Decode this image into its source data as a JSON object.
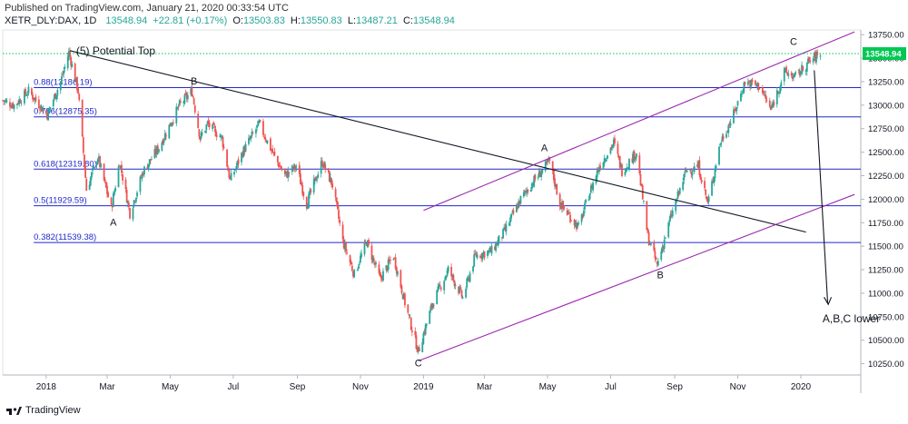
{
  "header": {
    "published": "Published on TradingView.com, January 21, 2020 00:33:54 UTC",
    "symbol": "XETR_DLY:DAX, 1D",
    "last": "13548.94",
    "change": "+22.81 (+0.17%)",
    "o_label": "O:",
    "o": "13503.83",
    "h_label": "H:",
    "h": "13550.83",
    "l_label": "L:",
    "l": "13487.21",
    "c_label": "C:",
    "c": "13548.94"
  },
  "footer": {
    "brand": "TradingView",
    "logo_icon": "tradingview-logo-icon"
  },
  "colors": {
    "up": "#26a69a",
    "down": "#ef5350",
    "fib": "#2029c8",
    "channel": "#9c27b0",
    "trend": "#131722",
    "price_line": "#00c853"
  },
  "chart_data": {
    "type": "candlestick",
    "price_label": "13548.94",
    "y_ticks": [
      10250,
      10500,
      10750,
      11000,
      11250,
      11500,
      11750,
      12000,
      12250,
      12500,
      12750,
      13000,
      13250,
      13500,
      13750
    ],
    "y_tick_labels": [
      "10250.00",
      "10500.00",
      "10750.00",
      "11000.00",
      "11250.00",
      "11500.00",
      "11750.00",
      "12000.00",
      "12250.00",
      "12500.00",
      "12750.00",
      "13000.00",
      "13250.00",
      "13500.00",
      "13750.00"
    ],
    "ylim": [
      10130,
      13800
    ],
    "x_ticks": [
      {
        "label": "2018",
        "date": "2018-01-01"
      },
      {
        "label": "Mar",
        "date": "2018-03-01"
      },
      {
        "label": "May",
        "date": "2018-05-01"
      },
      {
        "label": "Jul",
        "date": "2018-07-01"
      },
      {
        "label": "Sep",
        "date": "2018-09-01"
      },
      {
        "label": "Nov",
        "date": "2018-11-01"
      },
      {
        "label": "2019",
        "date": "2019-01-01"
      },
      {
        "label": "Mar",
        "date": "2019-03-01"
      },
      {
        "label": "May",
        "date": "2019-05-01"
      },
      {
        "label": "Jul",
        "date": "2019-07-01"
      },
      {
        "label": "Sep",
        "date": "2019-09-01"
      },
      {
        "label": "Nov",
        "date": "2019-11-01"
      },
      {
        "label": "2020",
        "date": "2020-01-01"
      }
    ],
    "xlim": [
      "2017-11-20",
      "2020-02-28"
    ],
    "close_path": [
      [
        "2017-11-20",
        13050
      ],
      [
        "2017-12-01",
        13000
      ],
      [
        "2017-12-15",
        13150
      ],
      [
        "2018-01-02",
        12900
      ],
      [
        "2018-01-15",
        13250
      ],
      [
        "2018-01-23",
        13560
      ],
      [
        "2018-02-01",
        13150
      ],
      [
        "2018-02-09",
        12100
      ],
      [
        "2018-02-20",
        12450
      ],
      [
        "2018-03-05",
        11900
      ],
      [
        "2018-03-13",
        12400
      ],
      [
        "2018-03-23",
        11850
      ],
      [
        "2018-04-05",
        12300
      ],
      [
        "2018-04-20",
        12550
      ],
      [
        "2018-05-10",
        13000
      ],
      [
        "2018-05-22",
        13150
      ],
      [
        "2018-05-30",
        12650
      ],
      [
        "2018-06-06",
        12800
      ],
      [
        "2018-06-20",
        12650
      ],
      [
        "2018-06-28",
        12200
      ],
      [
        "2018-07-10",
        12500
      ],
      [
        "2018-07-26",
        12800
      ],
      [
        "2018-08-10",
        12450
      ],
      [
        "2018-08-20",
        12250
      ],
      [
        "2018-08-31",
        12350
      ],
      [
        "2018-09-10",
        11950
      ],
      [
        "2018-09-25",
        12400
      ],
      [
        "2018-10-05",
        12150
      ],
      [
        "2018-10-15",
        11550
      ],
      [
        "2018-10-26",
        11200
      ],
      [
        "2018-11-07",
        11550
      ],
      [
        "2018-11-20",
        11150
      ],
      [
        "2018-12-03",
        11400
      ],
      [
        "2018-12-14",
        10900
      ],
      [
        "2018-12-27",
        10380
      ],
      [
        "2019-01-10",
        10900
      ],
      [
        "2019-01-25",
        11250
      ],
      [
        "2019-02-08",
        10950
      ],
      [
        "2019-02-20",
        11400
      ],
      [
        "2019-03-08",
        11450
      ],
      [
        "2019-03-20",
        11650
      ],
      [
        "2019-04-05",
        12000
      ],
      [
        "2019-04-18",
        12200
      ],
      [
        "2019-05-03",
        12400
      ],
      [
        "2019-05-13",
        11950
      ],
      [
        "2019-05-31",
        11700
      ],
      [
        "2019-06-10",
        12050
      ],
      [
        "2019-06-20",
        12350
      ],
      [
        "2019-07-04",
        12600
      ],
      [
        "2019-07-12",
        12300
      ],
      [
        "2019-07-26",
        12500
      ],
      [
        "2019-08-06",
        11600
      ],
      [
        "2019-08-15",
        11300
      ],
      [
        "2019-08-28",
        11800
      ],
      [
        "2019-09-12",
        12300
      ],
      [
        "2019-09-24",
        12350
      ],
      [
        "2019-10-03",
        11950
      ],
      [
        "2019-10-15",
        12600
      ],
      [
        "2019-10-28",
        12900
      ],
      [
        "2019-11-08",
        13250
      ],
      [
        "2019-11-22",
        13200
      ],
      [
        "2019-12-03",
        12950
      ],
      [
        "2019-12-16",
        13350
      ],
      [
        "2019-12-27",
        13300
      ],
      [
        "2020-01-08",
        13450
      ],
      [
        "2020-01-17",
        13530
      ],
      [
        "2020-01-20",
        13548.94
      ]
    ],
    "fib_levels": [
      {
        "label": "0.88(13186.19)",
        "value": 13186.19
      },
      {
        "label": "0.786(12875.35)",
        "value": 12875.35
      },
      {
        "label": "0.618(12319.80)",
        "value": 12319.8
      },
      {
        "label": "0.5(11929.59)",
        "value": 11929.59
      },
      {
        "label": "0.382(11539.38)",
        "value": 11539.38
      }
    ],
    "annotations": [
      {
        "text": "(5) Potential Top",
        "date": "2018-01-30",
        "price": 13540
      },
      {
        "text": "B",
        "date": "2018-05-24",
        "price": 13220
      },
      {
        "text": "A",
        "date": "2018-03-07",
        "price": 11720
      },
      {
        "text": "C",
        "date": "2018-12-27",
        "price": 10220
      },
      {
        "text": "A",
        "date": "2019-04-28",
        "price": 12510
      },
      {
        "text": "B",
        "date": "2019-08-18",
        "price": 11160
      },
      {
        "text": "C",
        "date": "2019-12-25",
        "price": 13640
      },
      {
        "text": "A,B,C lower",
        "date": "2020-01-22",
        "price": 10690
      }
    ],
    "trend_lines": [
      {
        "name": "resistance",
        "color": "trend",
        "from": [
          "2018-01-24",
          13580
        ],
        "to": [
          "2020-01-06",
          11650
        ]
      },
      {
        "name": "channel-upper",
        "color": "channel",
        "from": [
          "2019-01-01",
          11880
        ],
        "to": [
          "2020-02-22",
          13780
        ]
      },
      {
        "name": "channel-lower",
        "color": "channel",
        "from": [
          "2018-12-27",
          10280
        ],
        "to": [
          "2020-02-22",
          12050
        ]
      },
      {
        "name": "projection-arrow",
        "color": "trend",
        "from": [
          "2020-01-14",
          13370
        ],
        "to": [
          "2020-01-27",
          10890
        ]
      }
    ]
  }
}
